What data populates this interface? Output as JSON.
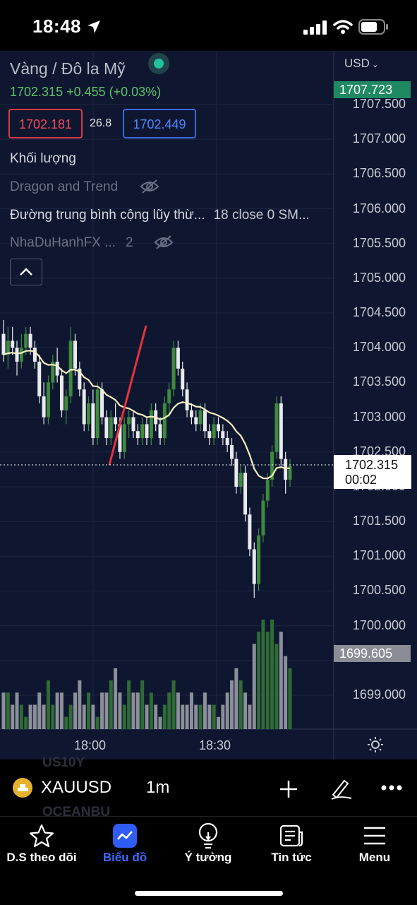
{
  "status_bar": {
    "time": "18:48"
  },
  "header": {
    "title": "Vàng / Đô la Mỹ",
    "price_line": "1702.315  +0.455 (+0.03%)",
    "sell_price": "1702.181",
    "spread": "26.8",
    "buy_price": "1702.449"
  },
  "indicators": [
    {
      "label": "Khối lượng",
      "visible": true
    },
    {
      "label": "Dragon and Trend",
      "visible": false
    },
    {
      "label": "Đường trung bình cộng lũy thừ...",
      "value": "18 close 0 SM...",
      "visible": true
    },
    {
      "label": "NhaDuHanhFX ...",
      "value": "2",
      "visible": false
    }
  ],
  "axis": {
    "currency": "USD",
    "price_labels": [
      "1707.500",
      "1707.000",
      "1706.500",
      "1706.000",
      "1705.500",
      "1705.000",
      "1704.500",
      "1704.000",
      "1703.500",
      "1703.000",
      "1702.500",
      "1702.000",
      "1701.500",
      "1701.000",
      "1700.500",
      "1700.000",
      "1699.000"
    ],
    "current_price": "1702.315",
    "countdown": "00:02",
    "high_tag": "1707.723",
    "low_tag": "1699.605",
    "time_labels": [
      "18:00",
      "18:30"
    ]
  },
  "toolbar": {
    "symbol": "XAUUSD",
    "timeframe": "1m",
    "ghost_top": "US10Y",
    "ghost_bottom": "OCEANBU"
  },
  "tabs": [
    {
      "label": "D.S theo dõi",
      "icon": "star-icon"
    },
    {
      "label": "Biểu đồ",
      "icon": "chart-icon",
      "active": true
    },
    {
      "label": "Ý tưởng",
      "icon": "lightbulb-icon"
    },
    {
      "label": "Tin tức",
      "icon": "news-icon"
    },
    {
      "label": "Menu",
      "icon": "menu-icon"
    }
  ],
  "colors": {
    "up": "#3d8a3e",
    "down": "#e8eaee",
    "ma": "#f3efc0",
    "bg": "#0f1730",
    "accent": "#3d6bff"
  },
  "chart_data": {
    "type": "candlestick",
    "timeframe": "1m",
    "symbol": "XAUUSD",
    "ohlc": [
      [
        1704.2,
        1704.4,
        1703.8,
        1703.9
      ],
      [
        1703.9,
        1704.3,
        1703.7,
        1704.1
      ],
      [
        1704.1,
        1704.3,
        1703.9,
        1704.0
      ],
      [
        1704.0,
        1704.1,
        1703.6,
        1703.8
      ],
      [
        1703.8,
        1704.2,
        1703.7,
        1704.0
      ],
      [
        1704.0,
        1704.3,
        1703.9,
        1704.2
      ],
      [
        1704.2,
        1704.3,
        1703.9,
        1704.0
      ],
      [
        1704.0,
        1704.1,
        1703.7,
        1703.8
      ],
      [
        1703.8,
        1703.9,
        1703.2,
        1703.3
      ],
      [
        1703.3,
        1703.5,
        1702.9,
        1703.0
      ],
      [
        1703.0,
        1703.6,
        1702.9,
        1703.5
      ],
      [
        1703.5,
        1703.9,
        1703.4,
        1703.8
      ],
      [
        1703.8,
        1704.0,
        1703.5,
        1703.6
      ],
      [
        1703.6,
        1703.7,
        1703.0,
        1703.1
      ],
      [
        1703.1,
        1703.4,
        1702.9,
        1703.3
      ],
      [
        1703.3,
        1704.3,
        1703.2,
        1704.1
      ],
      [
        1704.1,
        1704.2,
        1703.6,
        1703.7
      ],
      [
        1703.7,
        1703.8,
        1703.3,
        1703.4
      ],
      [
        1703.4,
        1703.5,
        1702.8,
        1702.9
      ],
      [
        1702.9,
        1703.3,
        1702.8,
        1703.2
      ],
      [
        1703.2,
        1703.4,
        1702.6,
        1702.7
      ],
      [
        1702.7,
        1703.5,
        1702.6,
        1703.4
      ],
      [
        1703.4,
        1703.5,
        1702.9,
        1703.0
      ],
      [
        1703.0,
        1703.1,
        1702.6,
        1702.7
      ],
      [
        1702.7,
        1703.1,
        1702.6,
        1703.0
      ],
      [
        1703.0,
        1703.2,
        1702.8,
        1702.9
      ],
      [
        1702.9,
        1703.0,
        1702.4,
        1702.5
      ],
      [
        1702.5,
        1703.0,
        1702.4,
        1702.9
      ],
      [
        1702.9,
        1703.1,
        1702.7,
        1703.0
      ],
      [
        1703.0,
        1703.1,
        1702.7,
        1702.8
      ],
      [
        1702.8,
        1702.9,
        1702.6,
        1702.7
      ],
      [
        1702.7,
        1703.0,
        1702.6,
        1702.9
      ],
      [
        1702.9,
        1703.0,
        1702.6,
        1702.7
      ],
      [
        1702.7,
        1703.2,
        1702.6,
        1703.1
      ],
      [
        1703.1,
        1703.2,
        1702.8,
        1702.9
      ],
      [
        1702.9,
        1703.0,
        1702.6,
        1702.7
      ],
      [
        1702.7,
        1703.3,
        1702.6,
        1703.2
      ],
      [
        1703.2,
        1703.5,
        1703.0,
        1703.4
      ],
      [
        1703.4,
        1704.1,
        1703.3,
        1704.0
      ],
      [
        1704.0,
        1704.1,
        1703.6,
        1703.7
      ],
      [
        1703.7,
        1703.8,
        1703.3,
        1703.4
      ],
      [
        1703.4,
        1703.5,
        1703.0,
        1703.1
      ],
      [
        1703.1,
        1703.2,
        1702.9,
        1703.0
      ],
      [
        1703.0,
        1703.1,
        1702.8,
        1702.9
      ],
      [
        1702.9,
        1703.2,
        1702.8,
        1703.1
      ],
      [
        1703.1,
        1703.2,
        1702.7,
        1702.8
      ],
      [
        1702.8,
        1702.9,
        1702.6,
        1702.7
      ],
      [
        1702.7,
        1703.0,
        1702.6,
        1702.9
      ],
      [
        1702.9,
        1703.0,
        1702.7,
        1702.8
      ],
      [
        1702.8,
        1702.9,
        1702.6,
        1702.7
      ],
      [
        1702.7,
        1702.8,
        1702.5,
        1702.6
      ],
      [
        1702.6,
        1702.7,
        1702.3,
        1702.4
      ],
      [
        1702.4,
        1702.5,
        1701.9,
        1702.0
      ],
      [
        1702.0,
        1702.3,
        1701.9,
        1702.2
      ],
      [
        1702.2,
        1702.3,
        1701.5,
        1701.6
      ],
      [
        1701.6,
        1701.7,
        1701.0,
        1701.1
      ],
      [
        1701.1,
        1701.2,
        1700.4,
        1700.6
      ],
      [
        1700.6,
        1701.4,
        1700.5,
        1701.3
      ],
      [
        1701.3,
        1701.9,
        1701.2,
        1701.8
      ],
      [
        1701.8,
        1702.2,
        1701.7,
        1702.1
      ],
      [
        1702.1,
        1702.6,
        1702.0,
        1702.5
      ],
      [
        1702.5,
        1703.3,
        1702.4,
        1703.2
      ],
      [
        1703.2,
        1703.3,
        1702.3,
        1702.4
      ],
      [
        1702.4,
        1702.5,
        1701.9,
        1702.1
      ],
      [
        1702.1,
        1702.4,
        1702.0,
        1702.3
      ]
    ],
    "volume": [
      3,
      3,
      2,
      3,
      2,
      1,
      2,
      2,
      3,
      2,
      4,
      2,
      3,
      3,
      1,
      2,
      3,
      4,
      2,
      3,
      2,
      1,
      3,
      3,
      4,
      5,
      3,
      2,
      4,
      3,
      3,
      4,
      2,
      3,
      2,
      1,
      2,
      3,
      4,
      3,
      2,
      2,
      3,
      2,
      2,
      3,
      2,
      2,
      1,
      2,
      3,
      4,
      5,
      4,
      3,
      2,
      7,
      8,
      9,
      8,
      9,
      7,
      8,
      6,
      5
    ],
    "ma_period": 18,
    "current_price": 1702.315,
    "y_range": [
      1698.5,
      1707.8
    ]
  }
}
